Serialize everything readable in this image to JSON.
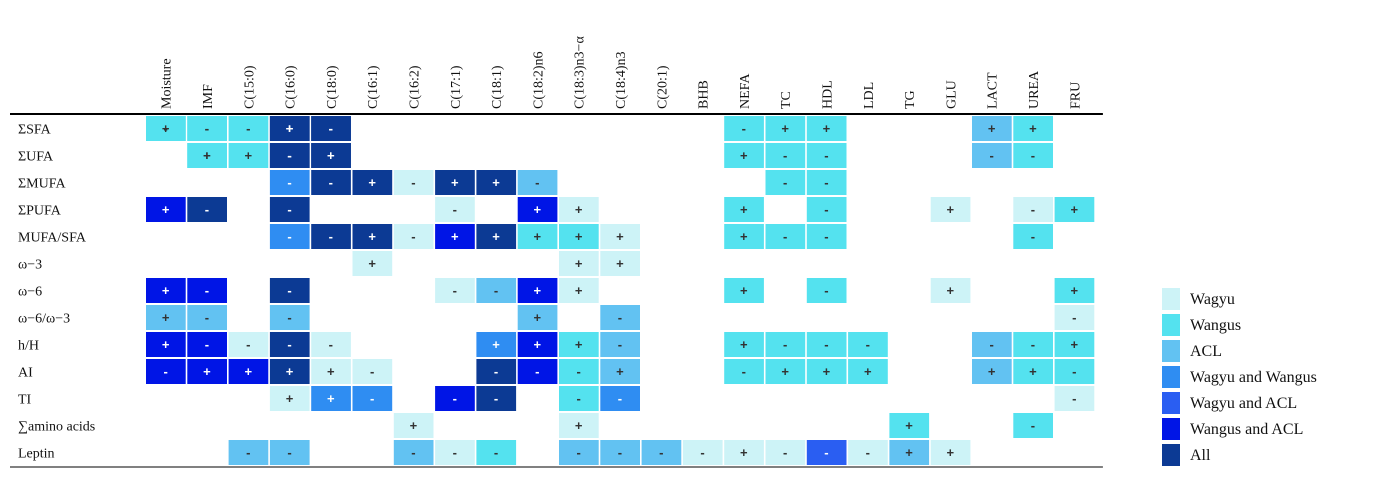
{
  "chart_data": {
    "type": "heatmap",
    "columns": [
      "Moisture",
      "IMF",
      "C(15:0)",
      "C(16:0)",
      "C(18:0)",
      "C(16:1)",
      "C(16:2)",
      "C(17:1)",
      "C(18:1)",
      "C(18:2)n6",
      "C(18:3)n3−α",
      "C(18:4)n3",
      "C(20:1)",
      "BHB",
      "NEFA",
      "TC",
      "HDL",
      "LDL",
      "TG",
      "GLU",
      "LACT",
      "UREA",
      "FRU"
    ],
    "rows": [
      {
        "label": "ΣSFA",
        "cells": [
          [
            3,
            "+"
          ],
          [
            3,
            "+"
          ],
          [
            2,
            "-"
          ],
          [
            0,
            "+"
          ],
          [
            4,
            "-"
          ],
          [
            4,
            "-"
          ],
          [
            1,
            "-"
          ],
          [
            1,
            "-"
          ],
          [
            0,
            "-"
          ],
          [
            14,
            "-"
          ],
          [
            15,
            "+"
          ],
          [
            16,
            "+"
          ],
          [
            20,
            "+"
          ],
          [
            21,
            "+"
          ]
        ]
      },
      {
        "label": "ΣUFA",
        "cells": [
          [
            3,
            "-"
          ],
          [
            3,
            "-"
          ],
          [
            2,
            "+"
          ],
          [
            4,
            "+"
          ],
          [
            4,
            "+"
          ],
          [
            1,
            "+"
          ],
          [
            1,
            "+"
          ],
          [
            14,
            "+"
          ],
          [
            15,
            "-"
          ],
          [
            16,
            "-"
          ],
          [
            20,
            "-"
          ],
          [
            21,
            "-"
          ]
        ]
      },
      {
        "label": "ΣMUFA",
        "cells": [
          [
            3,
            "-"
          ],
          [
            4,
            "-"
          ],
          [
            5,
            "+"
          ],
          [
            6,
            "-"
          ],
          [
            7,
            "+"
          ],
          [
            8,
            "+"
          ],
          [
            9,
            "-"
          ],
          [
            15,
            "-"
          ],
          [
            16,
            "-"
          ]
        ]
      },
      {
        "label": "ΣPUFA",
        "cells": [
          [
            0,
            "+"
          ],
          [
            1,
            "-"
          ],
          [
            3,
            "-"
          ],
          [
            7,
            "-"
          ],
          [
            9,
            "+"
          ],
          [
            10,
            "+"
          ],
          [
            14,
            "+"
          ],
          [
            16,
            "-"
          ],
          [
            19,
            "+"
          ],
          [
            21,
            "-"
          ],
          [
            22,
            "+"
          ]
        ]
      },
      {
        "label": "MUFA/SFA",
        "cells": [
          [
            3,
            "-"
          ],
          [
            4,
            "-"
          ],
          [
            5,
            "+"
          ],
          [
            6,
            "-"
          ],
          [
            7,
            "+"
          ],
          [
            8,
            "+"
          ],
          [
            9,
            "+"
          ],
          [
            10,
            "+"
          ],
          [
            11,
            "+"
          ],
          [
            14,
            "+"
          ],
          [
            15,
            "-"
          ],
          [
            16,
            "-"
          ],
          [
            21,
            "-"
          ]
        ]
      },
      {
        "label": "ω−3",
        "cells": [
          [
            5,
            "+"
          ],
          [
            10,
            "+"
          ],
          [
            11,
            "+"
          ]
        ]
      },
      {
        "label": "ω−6",
        "cells": [
          [
            0,
            "+"
          ],
          [
            1,
            "-"
          ],
          [
            3,
            "-"
          ],
          [
            7,
            "-"
          ],
          [
            8,
            "-"
          ],
          [
            9,
            "+"
          ],
          [
            10,
            "+"
          ],
          [
            14,
            "+"
          ],
          [
            16,
            "-"
          ],
          [
            19,
            "+"
          ],
          [
            22,
            "+"
          ]
        ]
      },
      {
        "label": "ω−6/ω−3",
        "cells": [
          [
            0,
            "+"
          ],
          [
            1,
            "-"
          ],
          [
            3,
            "-"
          ],
          [
            9,
            "+"
          ],
          [
            11,
            "-"
          ],
          [
            22,
            "-"
          ]
        ]
      },
      {
        "label": "h/H",
        "cells": [
          [
            0,
            "+"
          ],
          [
            1,
            "-"
          ],
          [
            2,
            "-"
          ],
          [
            3,
            "-"
          ],
          [
            4,
            "-"
          ],
          [
            8,
            "+"
          ],
          [
            9,
            "+"
          ],
          [
            10,
            "+"
          ],
          [
            11,
            "-"
          ],
          [
            14,
            "+"
          ],
          [
            15,
            "-"
          ],
          [
            16,
            "-"
          ],
          [
            17,
            "-"
          ],
          [
            20,
            "-"
          ],
          [
            21,
            "-"
          ],
          [
            22,
            "+"
          ]
        ]
      },
      {
        "label": "AI",
        "cells": [
          [
            0,
            "-"
          ],
          [
            1,
            "+"
          ],
          [
            2,
            "+"
          ],
          [
            3,
            "+"
          ],
          [
            4,
            "+"
          ],
          [
            5,
            "-"
          ],
          [
            8,
            "-"
          ],
          [
            9,
            "-"
          ],
          [
            10,
            "-"
          ],
          [
            11,
            "+"
          ],
          [
            14,
            "-"
          ],
          [
            15,
            "+"
          ],
          [
            16,
            "+"
          ],
          [
            17,
            "+"
          ],
          [
            20,
            "+"
          ],
          [
            21,
            "+"
          ],
          [
            22,
            "-"
          ]
        ]
      },
      {
        "label": "TI",
        "cells": [
          [
            3,
            "+"
          ],
          [
            4,
            "+"
          ],
          [
            5,
            "-"
          ],
          [
            7,
            "-"
          ],
          [
            8,
            "-"
          ],
          [
            10,
            "-"
          ],
          [
            11,
            "-"
          ],
          [
            22,
            "-"
          ]
        ]
      },
      {
        "label": "∑amino acids",
        "cells": [
          [
            6,
            "+"
          ],
          [
            10,
            "+"
          ],
          [
            18,
            "+"
          ],
          [
            21,
            "-"
          ]
        ]
      },
      {
        "label": "Leptin",
        "cells": [
          [
            2,
            "-"
          ],
          [
            3,
            "-"
          ],
          [
            6,
            "-"
          ],
          [
            7,
            "-"
          ],
          [
            8,
            "-"
          ],
          [
            10,
            "-"
          ],
          [
            11,
            "-"
          ],
          [
            12,
            "-"
          ],
          [
            13,
            "-"
          ],
          [
            14,
            "+"
          ],
          [
            15,
            "-"
          ],
          [
            16,
            "-"
          ],
          [
            17,
            "-"
          ],
          [
            18,
            "+"
          ],
          [
            19,
            "+"
          ]
        ]
      }
    ],
    "legend": {
      "position": "right",
      "entries": [
        {
          "name": "Wagyu",
          "color": "#cdf3f7"
        },
        {
          "name": "Wangus",
          "color": "#54e2ef"
        },
        {
          "name": "ACL",
          "color": "#62c2f2"
        },
        {
          "name": "Wagyu and Wangus",
          "color": "#2f8df2"
        },
        {
          "name": "Wagyu and ACL",
          "color": "#2a5ef2"
        },
        {
          "name": "Wangus and ACL",
          "color": "#0015e6"
        },
        {
          "name": "All",
          "color": "#0c3a94"
        }
      ]
    }
  }
}
